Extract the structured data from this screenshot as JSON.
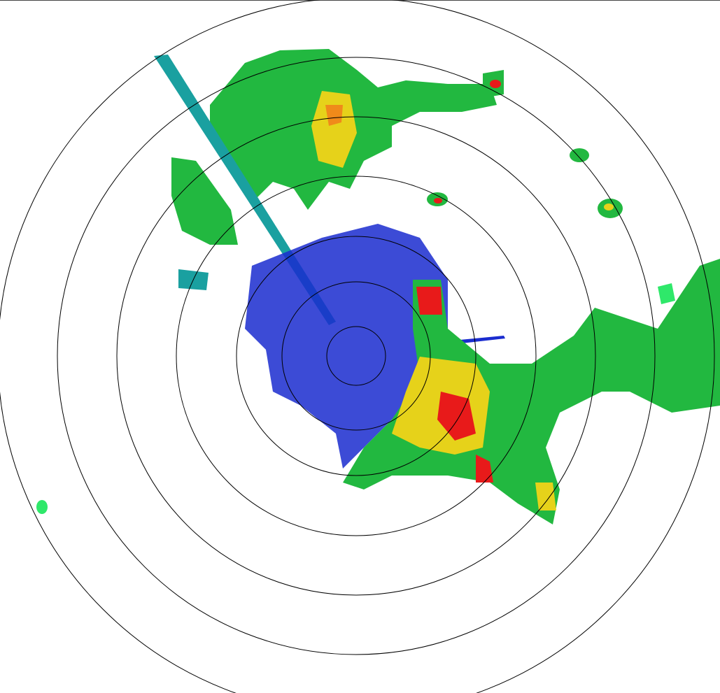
{
  "radar": {
    "range_ring_count": 7,
    "colors": {
      "ring": "#000000",
      "weak_blue": "#1a2ccf",
      "light_green": "#2fe86a",
      "green": "#22b840",
      "teal": "#1aa0a0",
      "yellow": "#e6d21a",
      "orange": "#f08a1a",
      "red": "#e81a1a"
    }
  }
}
